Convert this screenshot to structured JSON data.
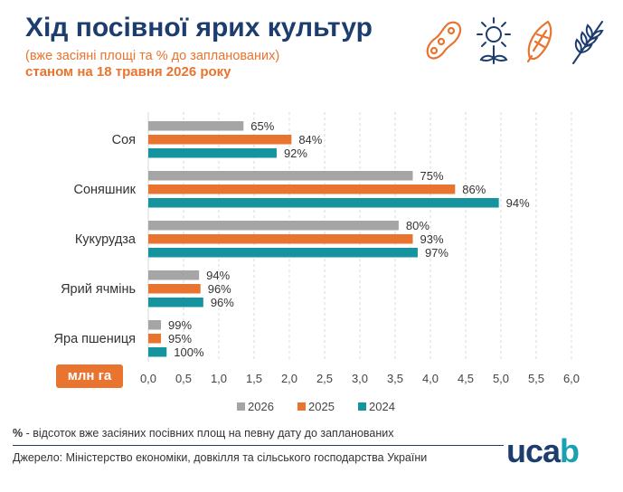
{
  "header": {
    "title": "Хід посівної ярих культур",
    "subtitle": "(вже засіяні площі та % до запланованих)",
    "date": "станом на 18 травня 2026 року"
  },
  "icons": [
    "soybean-icon",
    "sunflower-icon",
    "corn-icon",
    "wheat-icon"
  ],
  "colors": {
    "y2026": "#a5a5a5",
    "y2025": "#e8742f",
    "y2024": "#15949f",
    "title": "#1c3d6e",
    "accent": "#e8742f"
  },
  "chart_data": {
    "type": "bar",
    "orientation": "horizontal",
    "categories": [
      "Соя",
      "Соняшник",
      "Кукурудза",
      "Ярий ячмінь",
      "Яра пшениця"
    ],
    "series": [
      {
        "name": "2026",
        "values": [
          1.35,
          3.75,
          3.55,
          0.72,
          0.18
        ],
        "labels": [
          "65%",
          "75%",
          "80%",
          "94%",
          "99%"
        ]
      },
      {
        "name": "2025",
        "values": [
          2.03,
          4.35,
          3.75,
          0.74,
          0.18
        ],
        "labels": [
          "84%",
          "86%",
          "93%",
          "96%",
          "95%"
        ]
      },
      {
        "name": "2024",
        "values": [
          1.82,
          4.97,
          3.82,
          0.78,
          0.26
        ],
        "labels": [
          "92%",
          "94%",
          "97%",
          "96%",
          "100%"
        ]
      }
    ],
    "xticks": [
      "0,0",
      "0,5",
      "1,0",
      "1,5",
      "2,0",
      "2,5",
      "3,0",
      "3,5",
      "4,0",
      "4,5",
      "5,0",
      "5,5",
      "6,0"
    ],
    "xlim": [
      0,
      6
    ],
    "unit_label": "млн га",
    "grid": true,
    "legend_position": "bottom"
  },
  "footer": {
    "note_symbol": "%",
    "note_text": " - відсоток вже засіяних посівних площ на певну дату до запланованих",
    "source": "Джерело: Міністерство економіки, довкілля та сільського господарства України",
    "logo_a": "uca",
    "logo_b": "b"
  }
}
